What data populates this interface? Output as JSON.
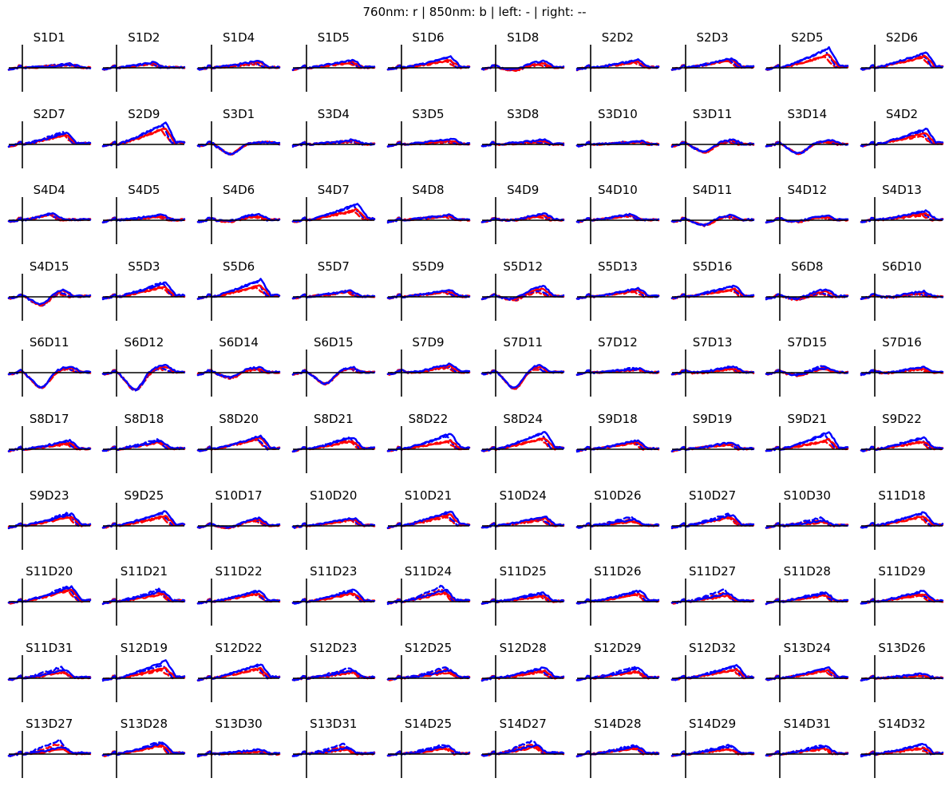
{
  "figure": {
    "title": "760nm: r | 850nm: b | left: - | right: --",
    "colors": {
      "wl760": "#ff0000",
      "wl850": "#0000ff",
      "axes": "#000000"
    },
    "legend": [
      {
        "label": "760nm",
        "marker": "r",
        "color": "#ff0000"
      },
      {
        "label": "850nm",
        "marker": "b",
        "color": "#0000ff"
      },
      {
        "label": "left",
        "linestyle": "-"
      },
      {
        "label": "right",
        "linestyle": "--"
      }
    ],
    "grid": {
      "rows": 10,
      "cols": 10
    }
  },
  "chart_data": {
    "type": "line",
    "title": "760nm: r | 850nm: b | left: - | right: --",
    "layout": "10x10 small multiples, one per source-detector channel",
    "series_per_panel": [
      {
        "name": "760nm left",
        "color": "#ff0000",
        "linestyle": "solid"
      },
      {
        "name": "760nm right",
        "color": "#ff0000",
        "linestyle": "dashed"
      },
      {
        "name": "850nm left",
        "color": "#0000ff",
        "linestyle": "solid"
      },
      {
        "name": "850nm right",
        "color": "#0000ff",
        "linestyle": "dashed"
      }
    ],
    "axes": {
      "x_zero_line": true,
      "y_zero_line": true,
      "ticks": false,
      "tick_labels": false
    },
    "panel_params_note": "a: solid-blue late peak (px above baseline), d: dashed-blue peak, r: red/blue ratio, p: peak position (0-1 of x span), n: early dip depth (px below baseline)",
    "panels": [
      {
        "label": "S1D1",
        "a": 4,
        "d": 5,
        "r": 0.9,
        "p": 0.75,
        "n": 0
      },
      {
        "label": "S1D2",
        "a": 7,
        "d": 6,
        "r": 0.8,
        "p": 0.55,
        "n": 0
      },
      {
        "label": "S1D4",
        "a": 9,
        "d": 6,
        "r": 0.8,
        "p": 0.7,
        "n": 0
      },
      {
        "label": "S1D5",
        "a": 10,
        "d": 8,
        "r": 0.75,
        "p": 0.68,
        "n": 0
      },
      {
        "label": "S1D6",
        "a": 14,
        "d": 12,
        "r": 0.7,
        "p": 0.72,
        "n": 0
      },
      {
        "label": "S1D8",
        "a": 9,
        "d": 6,
        "r": 0.6,
        "p": 0.72,
        "n": 3
      },
      {
        "label": "S2D2",
        "a": 10,
        "d": 9,
        "r": 0.75,
        "p": 0.7,
        "n": 0
      },
      {
        "label": "S2D3",
        "a": 12,
        "d": 11,
        "r": 0.85,
        "p": 0.68,
        "n": 0
      },
      {
        "label": "S2D5",
        "a": 25,
        "d": 22,
        "r": 0.65,
        "p": 0.72,
        "n": 0
      },
      {
        "label": "S2D6",
        "a": 20,
        "d": 17,
        "r": 0.75,
        "p": 0.75,
        "n": 0
      },
      {
        "label": "S2D7",
        "a": 15,
        "d": 16,
        "r": 0.8,
        "p": 0.65,
        "n": 0
      },
      {
        "label": "S2D9",
        "a": 27,
        "d": 25,
        "r": 0.75,
        "p": 0.72,
        "n": 0
      },
      {
        "label": "S3D1",
        "a": 3,
        "d": 3,
        "r": 1.0,
        "p": 0.9,
        "n": 8
      },
      {
        "label": "S3D4",
        "a": 6,
        "d": 4,
        "r": 0.8,
        "p": 0.7,
        "n": 0
      },
      {
        "label": "S3D5",
        "a": 7,
        "d": 4,
        "r": 0.6,
        "p": 0.75,
        "n": 0
      },
      {
        "label": "S3D8",
        "a": 6,
        "d": 3,
        "r": 0.7,
        "p": 0.7,
        "n": 0
      },
      {
        "label": "S3D10",
        "a": 4,
        "d": 4,
        "r": 0.8,
        "p": 0.75,
        "n": 0
      },
      {
        "label": "S3D11",
        "a": 6,
        "d": 4,
        "r": 0.8,
        "p": 0.7,
        "n": 7
      },
      {
        "label": "S3D14",
        "a": 5,
        "d": 4,
        "r": 0.8,
        "p": 0.75,
        "n": 8
      },
      {
        "label": "S4D2",
        "a": 20,
        "d": 16,
        "r": 0.7,
        "p": 0.75,
        "n": 0
      },
      {
        "label": "S4D4",
        "a": 9,
        "d": 8,
        "r": 0.9,
        "p": 0.45,
        "n": 0
      },
      {
        "label": "S4D5",
        "a": 7,
        "d": 6,
        "r": 0.7,
        "p": 0.68,
        "n": 0
      },
      {
        "label": "S4D6",
        "a": 8,
        "d": 7,
        "r": 0.6,
        "p": 0.7,
        "n": 2
      },
      {
        "label": "S4D7",
        "a": 21,
        "d": 18,
        "r": 0.65,
        "p": 0.75,
        "n": 0
      },
      {
        "label": "S4D8",
        "a": 7,
        "d": 6,
        "r": 0.8,
        "p": 0.7,
        "n": 0
      },
      {
        "label": "S4D9",
        "a": 8,
        "d": 6,
        "r": 0.7,
        "p": 0.72,
        "n": 1
      },
      {
        "label": "S4D10",
        "a": 8,
        "d": 7,
        "r": 0.8,
        "p": 0.6,
        "n": 0
      },
      {
        "label": "S4D11",
        "a": 7,
        "d": 5,
        "r": 0.8,
        "p": 0.68,
        "n": 5
      },
      {
        "label": "S4D12",
        "a": 6,
        "d": 5,
        "r": 0.7,
        "p": 0.7,
        "n": 2
      },
      {
        "label": "S4D13",
        "a": 12,
        "d": 9,
        "r": 0.7,
        "p": 0.75,
        "n": 0
      },
      {
        "label": "S4D15",
        "a": 10,
        "d": 6,
        "r": 0.8,
        "p": 0.6,
        "n": 8
      },
      {
        "label": "S5D3",
        "a": 18,
        "d": 18,
        "r": 0.7,
        "p": 0.72,
        "n": 0
      },
      {
        "label": "S5D6",
        "a": 22,
        "d": 19,
        "r": 0.65,
        "p": 0.72,
        "n": 0
      },
      {
        "label": "S5D7",
        "a": 8,
        "d": 8,
        "r": 0.8,
        "p": 0.65,
        "n": 0
      },
      {
        "label": "S5D9",
        "a": 9,
        "d": 7,
        "r": 0.8,
        "p": 0.7,
        "n": 0
      },
      {
        "label": "S5D12",
        "a": 14,
        "d": 8,
        "r": 0.75,
        "p": 0.7,
        "n": 4
      },
      {
        "label": "S5D13",
        "a": 11,
        "d": 9,
        "r": 0.75,
        "p": 0.7,
        "n": 0
      },
      {
        "label": "S5D16",
        "a": 14,
        "d": 13,
        "r": 0.7,
        "p": 0.72,
        "n": 0
      },
      {
        "label": "S6D8",
        "a": 10,
        "d": 5,
        "r": 0.7,
        "p": 0.68,
        "n": 3
      },
      {
        "label": "S6D10",
        "a": 7,
        "d": 4,
        "r": 0.7,
        "p": 0.72,
        "n": 1
      },
      {
        "label": "S6D11",
        "a": 8,
        "d": 6,
        "r": 0.8,
        "p": 0.72,
        "n": 13
      },
      {
        "label": "S6D12",
        "a": 10,
        "d": 6,
        "r": 0.8,
        "p": 0.72,
        "n": 15
      },
      {
        "label": "S6D14",
        "a": 7,
        "d": 5,
        "r": 0.7,
        "p": 0.7,
        "n": 5
      },
      {
        "label": "S6D15",
        "a": 7,
        "d": 6,
        "r": 0.8,
        "p": 0.68,
        "n": 10
      },
      {
        "label": "S7D9",
        "a": 11,
        "d": 8,
        "r": 0.75,
        "p": 0.72,
        "n": 1
      },
      {
        "label": "S7D11",
        "a": 10,
        "d": 7,
        "r": 0.8,
        "p": 0.65,
        "n": 14
      },
      {
        "label": "S7D12",
        "a": 5,
        "d": 6,
        "r": 0.7,
        "p": 0.72,
        "n": 0
      },
      {
        "label": "S7D13",
        "a": 8,
        "d": 7,
        "r": 0.6,
        "p": 0.7,
        "n": 1
      },
      {
        "label": "S7D15",
        "a": 6,
        "d": 9,
        "r": 0.7,
        "p": 0.7,
        "n": 3
      },
      {
        "label": "S7D16",
        "a": 7,
        "d": 6,
        "r": 0.7,
        "p": 0.72,
        "n": 1
      },
      {
        "label": "S8D17",
        "a": 11,
        "d": 9,
        "r": 0.7,
        "p": 0.7,
        "n": 0
      },
      {
        "label": "S8D18",
        "a": 11,
        "d": 12,
        "r": 0.8,
        "p": 0.65,
        "n": 0
      },
      {
        "label": "S8D20",
        "a": 17,
        "d": 14,
        "r": 0.85,
        "p": 0.72,
        "n": 0
      },
      {
        "label": "S8D21",
        "a": 15,
        "d": 15,
        "r": 0.7,
        "p": 0.68,
        "n": 0
      },
      {
        "label": "S8D22",
        "a": 20,
        "d": 17,
        "r": 0.55,
        "p": 0.72,
        "n": 0
      },
      {
        "label": "S8D24",
        "a": 22,
        "d": 20,
        "r": 0.65,
        "p": 0.72,
        "n": 0
      },
      {
        "label": "S9D18",
        "a": 11,
        "d": 10,
        "r": 0.8,
        "p": 0.68,
        "n": 0
      },
      {
        "label": "S9D19",
        "a": 9,
        "d": 8,
        "r": 0.75,
        "p": 0.68,
        "n": 0
      },
      {
        "label": "S9D21",
        "a": 22,
        "d": 18,
        "r": 0.55,
        "p": 0.72,
        "n": 0
      },
      {
        "label": "S9D22",
        "a": 15,
        "d": 14,
        "r": 0.65,
        "p": 0.72,
        "n": 0
      },
      {
        "label": "S9D23",
        "a": 15,
        "d": 16,
        "r": 0.75,
        "p": 0.72,
        "n": 0
      },
      {
        "label": "S9D25",
        "a": 19,
        "d": 16,
        "r": 0.65,
        "p": 0.72,
        "n": 0
      },
      {
        "label": "S10D17",
        "a": 10,
        "d": 8,
        "r": 0.8,
        "p": 0.7,
        "n": 3
      },
      {
        "label": "S10D20",
        "a": 10,
        "d": 9,
        "r": 0.8,
        "p": 0.7,
        "n": 0
      },
      {
        "label": "S10D21",
        "a": 19,
        "d": 15,
        "r": 0.75,
        "p": 0.72,
        "n": 0
      },
      {
        "label": "S10D24",
        "a": 12,
        "d": 9,
        "r": 0.8,
        "p": 0.72,
        "n": 0
      },
      {
        "label": "S10D26",
        "a": 8,
        "d": 11,
        "r": 0.7,
        "p": 0.65,
        "n": 0
      },
      {
        "label": "S10D27",
        "a": 14,
        "d": 15,
        "r": 0.75,
        "p": 0.68,
        "n": 0
      },
      {
        "label": "S10D30",
        "a": 7,
        "d": 10,
        "r": 0.7,
        "p": 0.65,
        "n": 0
      },
      {
        "label": "S11D18",
        "a": 17,
        "d": 16,
        "r": 0.7,
        "p": 0.72,
        "n": 0
      },
      {
        "label": "S11D20",
        "a": 19,
        "d": 19,
        "r": 0.8,
        "p": 0.72,
        "n": 0
      },
      {
        "label": "S11D21",
        "a": 14,
        "d": 16,
        "r": 0.7,
        "p": 0.68,
        "n": 0
      },
      {
        "label": "S11D22",
        "a": 14,
        "d": 13,
        "r": 0.75,
        "p": 0.7,
        "n": 0
      },
      {
        "label": "S11D23",
        "a": 15,
        "d": 15,
        "r": 0.7,
        "p": 0.7,
        "n": 0
      },
      {
        "label": "S11D24",
        "a": 15,
        "d": 20,
        "r": 0.75,
        "p": 0.65,
        "n": 0
      },
      {
        "label": "S11D25",
        "a": 11,
        "d": 11,
        "r": 0.65,
        "p": 0.7,
        "n": 0
      },
      {
        "label": "S11D26",
        "a": 14,
        "d": 13,
        "r": 0.7,
        "p": 0.72,
        "n": 0
      },
      {
        "label": "S11D27",
        "a": 11,
        "d": 15,
        "r": 0.7,
        "p": 0.62,
        "n": 0
      },
      {
        "label": "S11D28",
        "a": 11,
        "d": 12,
        "r": 0.75,
        "p": 0.68,
        "n": 0
      },
      {
        "label": "S11D29",
        "a": 14,
        "d": 11,
        "r": 0.7,
        "p": 0.72,
        "n": 0
      },
      {
        "label": "S11D31",
        "a": 11,
        "d": 14,
        "r": 0.7,
        "p": 0.62,
        "n": 0
      },
      {
        "label": "S12D19",
        "a": 22,
        "d": 17,
        "r": 0.6,
        "p": 0.72,
        "n": 0
      },
      {
        "label": "S12D22",
        "a": 18,
        "d": 16,
        "r": 0.7,
        "p": 0.72,
        "n": 0
      },
      {
        "label": "S12D23",
        "a": 10,
        "d": 13,
        "r": 0.75,
        "p": 0.7,
        "n": 0
      },
      {
        "label": "S12D25",
        "a": 10,
        "d": 14,
        "r": 0.75,
        "p": 0.72,
        "n": 0
      },
      {
        "label": "S12D28",
        "a": 14,
        "d": 11,
        "r": 0.7,
        "p": 0.72,
        "n": 0
      },
      {
        "label": "S12D29",
        "a": 13,
        "d": 14,
        "r": 0.65,
        "p": 0.7,
        "n": 0
      },
      {
        "label": "S12D32",
        "a": 16,
        "d": 15,
        "r": 0.7,
        "p": 0.75,
        "n": 0
      },
      {
        "label": "S13D24",
        "a": 13,
        "d": 12,
        "r": 0.8,
        "p": 0.72,
        "n": 0
      },
      {
        "label": "S13D26",
        "a": 6,
        "d": 5,
        "r": 0.6,
        "p": 0.72,
        "n": 0
      },
      {
        "label": "S13D27",
        "a": 9,
        "d": 18,
        "r": 0.7,
        "p": 0.6,
        "n": 0
      },
      {
        "label": "S13D28",
        "a": 14,
        "d": 15,
        "r": 0.8,
        "p": 0.68,
        "n": 0
      },
      {
        "label": "S13D30",
        "a": 6,
        "d": 4,
        "r": 0.6,
        "p": 0.72,
        "n": 0
      },
      {
        "label": "S13D31",
        "a": 8,
        "d": 13,
        "r": 0.7,
        "p": 0.6,
        "n": 0
      },
      {
        "label": "S14D25",
        "a": 10,
        "d": 12,
        "r": 0.7,
        "p": 0.68,
        "n": 0
      },
      {
        "label": "S14D27",
        "a": 12,
        "d": 17,
        "r": 0.75,
        "p": 0.6,
        "n": 0
      },
      {
        "label": "S14D28",
        "a": 10,
        "d": 11,
        "r": 0.75,
        "p": 0.68,
        "n": 0
      },
      {
        "label": "S14D29",
        "a": 10,
        "d": 11,
        "r": 0.6,
        "p": 0.68,
        "n": 0
      },
      {
        "label": "S14D31",
        "a": 10,
        "d": 11,
        "r": 0.7,
        "p": 0.68,
        "n": 0
      },
      {
        "label": "S14D32",
        "a": 13,
        "d": 11,
        "r": 0.6,
        "p": 0.72,
        "n": 0
      }
    ]
  }
}
